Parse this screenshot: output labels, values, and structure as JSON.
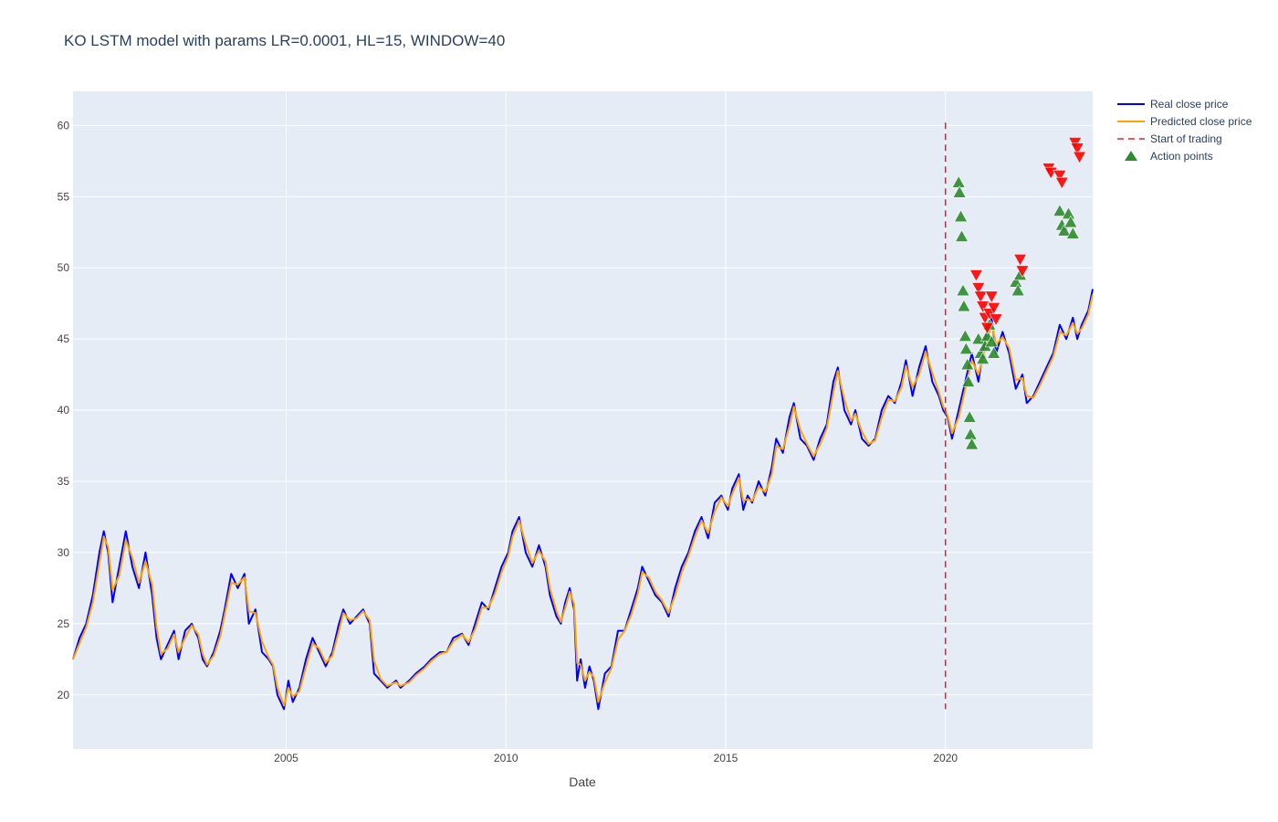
{
  "chart_data": {
    "type": "line",
    "title": "KO LSTM model with params LR=0.0001, HL=15, WINDOW=40",
    "xlabel": "Date",
    "ylabel": "",
    "xlim": [
      2000.15,
      2023.35
    ],
    "ylim": [
      16.2,
      62.4
    ],
    "xticks": [
      2005,
      2010,
      2015,
      2020
    ],
    "yticks": [
      20,
      25,
      30,
      35,
      40,
      45,
      50,
      55,
      60
    ],
    "grid": true,
    "legend_position": "top-right-outside",
    "start_of_trading": {
      "x": 2020.0,
      "y_range": [
        19,
        60.2
      ]
    },
    "colors": {
      "real": "#0000ff",
      "predicted": "#ffa500",
      "start": "#d62728",
      "buy": "#2e8b2e",
      "sell": "#ff0000",
      "plot_bg": "#e5ecf6",
      "grid": "#ffffff"
    },
    "series": [
      {
        "name": "Real close price",
        "key": "real",
        "points": [
          [
            2000.15,
            22.5
          ],
          [
            2000.3,
            24
          ],
          [
            2000.45,
            25
          ],
          [
            2000.6,
            27
          ],
          [
            2000.75,
            30
          ],
          [
            2000.85,
            31.5
          ],
          [
            2000.95,
            30
          ],
          [
            2001.05,
            26.5
          ],
          [
            2001.2,
            29
          ],
          [
            2001.35,
            31.5
          ],
          [
            2001.5,
            29
          ],
          [
            2001.65,
            27.5
          ],
          [
            2001.8,
            30
          ],
          [
            2001.95,
            27
          ],
          [
            2002.05,
            24
          ],
          [
            2002.15,
            22.5
          ],
          [
            2002.3,
            23.5
          ],
          [
            2002.45,
            24.5
          ],
          [
            2002.55,
            22.5
          ],
          [
            2002.7,
            24.5
          ],
          [
            2002.85,
            25
          ],
          [
            2003.0,
            24
          ],
          [
            2003.1,
            22.5
          ],
          [
            2003.2,
            22
          ],
          [
            2003.35,
            23
          ],
          [
            2003.5,
            24.5
          ],
          [
            2003.6,
            26
          ],
          [
            2003.75,
            28.5
          ],
          [
            2003.9,
            27.5
          ],
          [
            2004.05,
            28.5
          ],
          [
            2004.15,
            25
          ],
          [
            2004.3,
            26
          ],
          [
            2004.45,
            23
          ],
          [
            2004.6,
            22.5
          ],
          [
            2004.7,
            22
          ],
          [
            2004.8,
            20
          ],
          [
            2004.95,
            19
          ],
          [
            2005.05,
            21
          ],
          [
            2005.15,
            19.5
          ],
          [
            2005.3,
            20.5
          ],
          [
            2005.45,
            22.5
          ],
          [
            2005.6,
            24
          ],
          [
            2005.75,
            23
          ],
          [
            2005.9,
            22
          ],
          [
            2006.05,
            23
          ],
          [
            2006.2,
            25
          ],
          [
            2006.3,
            26
          ],
          [
            2006.45,
            25
          ],
          [
            2006.6,
            25.5
          ],
          [
            2006.75,
            26
          ],
          [
            2006.9,
            25
          ],
          [
            2007.0,
            21.5
          ],
          [
            2007.15,
            21
          ],
          [
            2007.3,
            20.5
          ],
          [
            2007.5,
            21
          ],
          [
            2007.6,
            20.5
          ],
          [
            2007.8,
            21
          ],
          [
            2007.95,
            21.5
          ],
          [
            2008.15,
            22
          ],
          [
            2008.3,
            22.5
          ],
          [
            2008.5,
            23
          ],
          [
            2008.65,
            23
          ],
          [
            2008.8,
            24
          ],
          [
            2009.0,
            24.3
          ],
          [
            2009.15,
            23.5
          ],
          [
            2009.3,
            25
          ],
          [
            2009.45,
            26.5
          ],
          [
            2009.6,
            26
          ],
          [
            2009.75,
            27.5
          ],
          [
            2009.9,
            29
          ],
          [
            2010.05,
            30
          ],
          [
            2010.15,
            31.5
          ],
          [
            2010.3,
            32.5
          ],
          [
            2010.45,
            30
          ],
          [
            2010.6,
            29
          ],
          [
            2010.75,
            30.5
          ],
          [
            2010.9,
            29
          ],
          [
            2011.0,
            27
          ],
          [
            2011.15,
            25.5
          ],
          [
            2011.25,
            25
          ],
          [
            2011.35,
            26.5
          ],
          [
            2011.45,
            27.5
          ],
          [
            2011.55,
            26
          ],
          [
            2011.62,
            21
          ],
          [
            2011.7,
            22.5
          ],
          [
            2011.8,
            20.5
          ],
          [
            2011.9,
            22
          ],
          [
            2012.0,
            21
          ],
          [
            2012.1,
            19
          ],
          [
            2012.25,
            21.5
          ],
          [
            2012.4,
            22
          ],
          [
            2012.55,
            24.5
          ],
          [
            2012.7,
            24.5
          ],
          [
            2012.85,
            26
          ],
          [
            2013.0,
            27.5
          ],
          [
            2013.1,
            29
          ],
          [
            2013.25,
            28
          ],
          [
            2013.4,
            27
          ],
          [
            2013.55,
            26.5
          ],
          [
            2013.7,
            25.5
          ],
          [
            2013.85,
            27.5
          ],
          [
            2014.0,
            29
          ],
          [
            2014.15,
            30
          ],
          [
            2014.3,
            31.5
          ],
          [
            2014.45,
            32.5
          ],
          [
            2014.6,
            31
          ],
          [
            2014.75,
            33.5
          ],
          [
            2014.9,
            34
          ],
          [
            2015.05,
            33
          ],
          [
            2015.15,
            34.5
          ],
          [
            2015.3,
            35.5
          ],
          [
            2015.4,
            33
          ],
          [
            2015.5,
            34
          ],
          [
            2015.6,
            33.5
          ],
          [
            2015.75,
            35
          ],
          [
            2015.9,
            34
          ],
          [
            2016.05,
            36
          ],
          [
            2016.15,
            38
          ],
          [
            2016.3,
            37
          ],
          [
            2016.45,
            39.5
          ],
          [
            2016.55,
            40.5
          ],
          [
            2016.7,
            38
          ],
          [
            2016.85,
            37.5
          ],
          [
            2017.0,
            36.5
          ],
          [
            2017.15,
            38
          ],
          [
            2017.3,
            39
          ],
          [
            2017.45,
            42
          ],
          [
            2017.55,
            43
          ],
          [
            2017.7,
            40
          ],
          [
            2017.85,
            39
          ],
          [
            2017.95,
            40
          ],
          [
            2018.1,
            38
          ],
          [
            2018.25,
            37.5
          ],
          [
            2018.4,
            38
          ],
          [
            2018.55,
            40
          ],
          [
            2018.7,
            41
          ],
          [
            2018.85,
            40.5
          ],
          [
            2019.0,
            42
          ],
          [
            2019.1,
            43.5
          ],
          [
            2019.25,
            41
          ],
          [
            2019.4,
            43
          ],
          [
            2019.55,
            44.5
          ],
          [
            2019.7,
            42
          ],
          [
            2019.85,
            41
          ],
          [
            2019.95,
            40
          ],
          [
            2020.05,
            39.5
          ],
          [
            2020.15,
            38
          ],
          [
            2020.3,
            40
          ],
          [
            2020.45,
            42
          ],
          [
            2020.6,
            44
          ],
          [
            2020.75,
            42
          ],
          [
            2020.9,
            45
          ],
          [
            2021.05,
            46.5
          ],
          [
            2021.15,
            44
          ],
          [
            2021.3,
            45.5
          ],
          [
            2021.45,
            44
          ],
          [
            2021.6,
            41.5
          ],
          [
            2021.75,
            42.5
          ],
          [
            2021.85,
            40.5
          ],
          [
            2022.0,
            41
          ],
          [
            2022.15,
            42
          ],
          [
            2022.3,
            43
          ],
          [
            2022.45,
            44
          ],
          [
            2022.6,
            46
          ],
          [
            2022.75,
            45
          ],
          [
            2022.9,
            46.5
          ],
          [
            2023.0,
            45
          ],
          [
            2023.1,
            46
          ],
          [
            2023.25,
            47
          ],
          [
            2023.35,
            48.5
          ]
        ]
      }
    ],
    "action_points": {
      "name": "Action points",
      "buy": [
        [
          2020.3,
          56
        ],
        [
          2020.32,
          55.3
        ],
        [
          2020.35,
          53.6
        ],
        [
          2020.37,
          52.2
        ],
        [
          2020.4,
          48.4
        ],
        [
          2020.42,
          47.3
        ],
        [
          2020.45,
          45.2
        ],
        [
          2020.47,
          44.3
        ],
        [
          2020.5,
          43.2
        ],
        [
          2020.52,
          42
        ],
        [
          2020.55,
          39.5
        ],
        [
          2020.57,
          38.3
        ],
        [
          2020.6,
          37.6
        ],
        [
          2020.75,
          45
        ],
        [
          2020.8,
          44
        ],
        [
          2020.85,
          43.6
        ],
        [
          2020.9,
          44.5
        ],
        [
          2020.95,
          45.2
        ],
        [
          2021.0,
          46
        ],
        [
          2021.05,
          44.8
        ],
        [
          2021.1,
          44
        ],
        [
          2021.6,
          49
        ],
        [
          2021.65,
          48.4
        ],
        [
          2021.7,
          49.5
        ],
        [
          2022.6,
          54
        ],
        [
          2022.65,
          53
        ],
        [
          2022.7,
          52.6
        ],
        [
          2022.8,
          53.8
        ],
        [
          2022.85,
          53.2
        ],
        [
          2022.9,
          52.4
        ]
      ],
      "sell": [
        [
          2020.7,
          49.5
        ],
        [
          2020.75,
          48.6
        ],
        [
          2020.8,
          48
        ],
        [
          2020.85,
          47.3
        ],
        [
          2020.9,
          46.5
        ],
        [
          2020.95,
          45.8
        ],
        [
          2021.0,
          46.8
        ],
        [
          2021.05,
          48
        ],
        [
          2021.1,
          47.2
        ],
        [
          2021.15,
          46.4
        ],
        [
          2021.7,
          50.6
        ],
        [
          2021.75,
          49.8
        ],
        [
          2022.35,
          57
        ],
        [
          2022.4,
          56.7
        ],
        [
          2022.6,
          56.5
        ],
        [
          2022.65,
          56
        ],
        [
          2022.95,
          58.8
        ],
        [
          2023.0,
          58.4
        ],
        [
          2023.05,
          57.8
        ]
      ]
    }
  },
  "legend": [
    {
      "label": "Real close price",
      "key": "real"
    },
    {
      "label": "Predicted close price",
      "key": "predicted"
    },
    {
      "label": "Start of trading",
      "key": "start"
    },
    {
      "label": "Action points",
      "key": "buy"
    }
  ]
}
